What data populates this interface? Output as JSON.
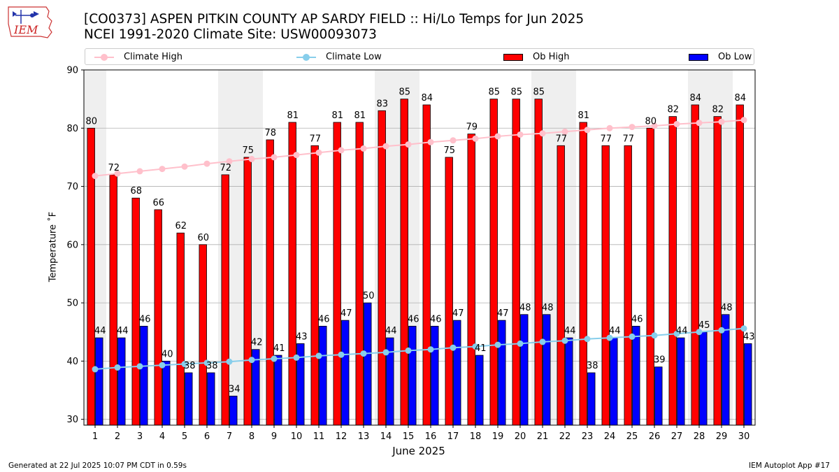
{
  "logo": {
    "text": "IEM"
  },
  "header": {
    "title_line1": "[CO0373] ASPEN PITKIN COUNTY AP SARDY FIELD :: Hi/Lo Temps for Jun 2025",
    "title_line2": "NCEI 1991-2020 Climate Site: USW00093073"
  },
  "legend": {
    "climate_high": "Climate High",
    "climate_low": "Climate Low",
    "ob_high": "Ob High",
    "ob_low": "Ob Low"
  },
  "colors": {
    "ob_high": "#ff0000",
    "ob_low": "#0000ff",
    "climate_high": "#ffc0cb",
    "climate_low": "#87ceeb",
    "weekend_shade": "#efefef",
    "grid": "#b0b0b0"
  },
  "footer": {
    "generated": "Generated at 22 Jul 2025 10:07 PM CDT in 0.59s",
    "app": "IEM Autoplot App #17"
  },
  "chart_data": {
    "type": "bar",
    "title": "[CO0373] ASPEN PITKIN COUNTY AP SARDY FIELD :: Hi/Lo Temps for Jun 2025",
    "subtitle": "NCEI 1991-2020 Climate Site: USW00093073",
    "xlabel": "June 2025",
    "ylabel": "Temperature ˚F",
    "ylim": [
      29,
      90
    ],
    "yticks": [
      30,
      40,
      50,
      60,
      70,
      80,
      90
    ],
    "grid": true,
    "legend_position": "top",
    "categories": [
      "1",
      "2",
      "3",
      "4",
      "5",
      "6",
      "7",
      "8",
      "9",
      "10",
      "11",
      "12",
      "13",
      "14",
      "15",
      "16",
      "17",
      "18",
      "19",
      "20",
      "21",
      "22",
      "23",
      "24",
      "25",
      "26",
      "27",
      "28",
      "29",
      "30"
    ],
    "weekend_days": [
      1,
      7,
      8,
      14,
      15,
      21,
      22,
      28,
      29
    ],
    "series": [
      {
        "name": "Ob High",
        "type": "bar",
        "values": [
          80,
          72,
          68,
          66,
          62,
          60,
          72,
          75,
          78,
          81,
          77,
          81,
          81,
          83,
          85,
          84,
          75,
          79,
          85,
          85,
          85,
          77,
          81,
          77,
          77,
          80,
          82,
          84,
          82,
          84
        ]
      },
      {
        "name": "Ob Low",
        "type": "bar",
        "values": [
          44,
          44,
          46,
          40,
          38,
          38,
          34,
          42,
          41,
          43,
          46,
          47,
          50,
          44,
          46,
          46,
          47,
          41,
          47,
          48,
          48,
          44,
          38,
          44,
          46,
          39,
          44,
          45,
          48,
          43
        ]
      },
      {
        "name": "Climate High",
        "type": "line",
        "values": [
          71.8,
          72.2,
          72.6,
          73.0,
          73.4,
          73.9,
          74.3,
          74.7,
          75.0,
          75.4,
          75.8,
          76.2,
          76.5,
          76.9,
          77.2,
          77.6,
          77.9,
          78.2,
          78.6,
          78.9,
          79.1,
          79.4,
          79.7,
          80.0,
          80.2,
          80.4,
          80.7,
          80.9,
          81.1,
          81.4
        ]
      },
      {
        "name": "Climate Low",
        "type": "line",
        "values": [
          38.6,
          38.9,
          39.1,
          39.3,
          39.5,
          39.7,
          39.9,
          40.2,
          40.4,
          40.6,
          40.9,
          41.1,
          41.3,
          41.5,
          41.8,
          42.0,
          42.3,
          42.5,
          42.8,
          43.0,
          43.3,
          43.5,
          43.8,
          44.0,
          44.2,
          44.4,
          44.7,
          45.0,
          45.3,
          45.6
        ]
      }
    ]
  }
}
